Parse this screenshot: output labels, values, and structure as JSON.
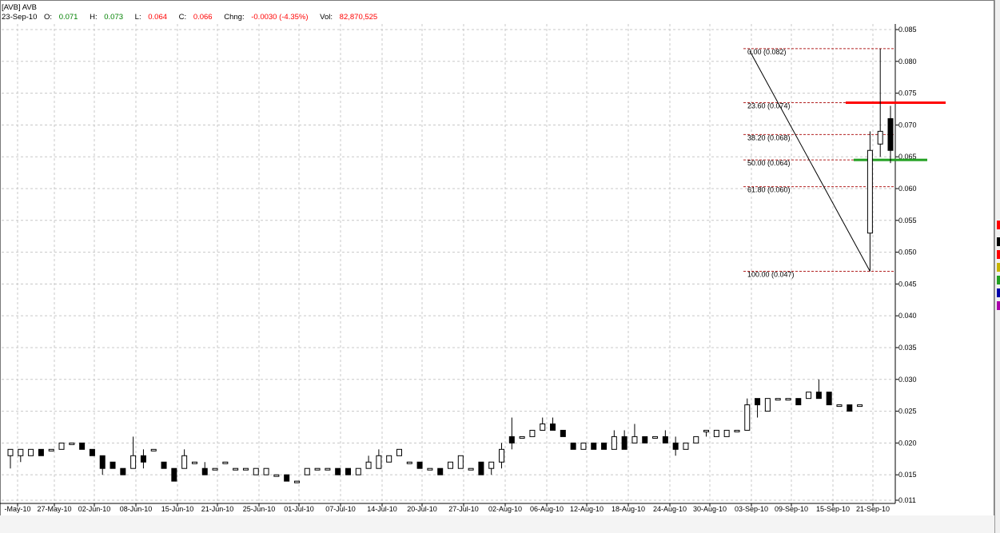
{
  "header": {
    "symbol": "[AVB] AVB",
    "date": "23-Sep-10",
    "open_label": "O:",
    "open_value": "0.071",
    "high_label": "H:",
    "high_value": "0.073",
    "low_label": "L:",
    "low_value": "0.064",
    "close_label": "C:",
    "close_value": "0.066",
    "change_label": "Chng:",
    "change_value": "-0.0030 (-4.35%)",
    "volume_label": "Vol:",
    "volume_value": "82,870,525"
  },
  "colors": {
    "up_text": "#008000",
    "down_text": "#ff0000",
    "resistance_line": "#ff0000",
    "support_line": "#22a022",
    "fib_lines": "#b22222",
    "grid": "#c8c8c8"
  },
  "chart_data": {
    "type": "candlestick",
    "ylim": [
      0.011,
      0.085
    ],
    "y_ticks": [
      "0.085",
      "0.080",
      "0.075",
      "0.070",
      "0.065",
      "0.060",
      "0.055",
      "0.050",
      "0.045",
      "0.040",
      "0.035",
      "0.030",
      "0.025",
      "0.020",
      "0.015",
      "0.011"
    ],
    "x_tick_labels": [
      "-May-10",
      "27-May-10",
      "02-Jun-10",
      "08-Jun-10",
      "15-Jun-10",
      "21-Jun-10",
      "25-Jun-10",
      "01-Jul-10",
      "07-Jul-10",
      "14-Jul-10",
      "20-Jul-10",
      "27-Jul-10",
      "02-Aug-10",
      "06-Aug-10",
      "12-Aug-10",
      "18-Aug-10",
      "24-Aug-10",
      "30-Aug-10",
      "03-Sep-10",
      "09-Sep-10",
      "15-Sep-10",
      "21-Sep-10"
    ],
    "candles": [
      [
        0.018,
        0.019,
        0.016,
        0.019
      ],
      [
        0.018,
        0.019,
        0.017,
        0.019
      ],
      [
        0.018,
        0.019,
        0.018,
        0.019
      ],
      [
        0.019,
        0.019,
        0.018,
        0.018
      ],
      [
        0.019,
        0.019,
        0.019,
        0.019
      ],
      [
        0.019,
        0.02,
        0.019,
        0.02
      ],
      [
        0.02,
        0.02,
        0.02,
        0.02
      ],
      [
        0.02,
        0.02,
        0.019,
        0.019
      ],
      [
        0.019,
        0.019,
        0.018,
        0.018
      ],
      [
        0.018,
        0.018,
        0.015,
        0.016
      ],
      [
        0.017,
        0.017,
        0.016,
        0.016
      ],
      [
        0.016,
        0.016,
        0.015,
        0.015
      ],
      [
        0.016,
        0.021,
        0.016,
        0.018
      ],
      [
        0.018,
        0.019,
        0.016,
        0.017
      ],
      [
        0.019,
        0.019,
        0.019,
        0.019
      ],
      [
        0.017,
        0.017,
        0.016,
        0.016
      ],
      [
        0.016,
        0.016,
        0.014,
        0.014
      ],
      [
        0.016,
        0.019,
        0.016,
        0.018
      ],
      [
        0.017,
        0.017,
        0.017,
        0.017
      ],
      [
        0.016,
        0.017,
        0.015,
        0.015
      ],
      [
        0.016,
        0.016,
        0.016,
        0.016
      ],
      [
        0.017,
        0.017,
        0.017,
        0.017
      ],
      [
        0.016,
        0.016,
        0.016,
        0.016
      ],
      [
        0.016,
        0.016,
        0.016,
        0.016
      ],
      [
        0.015,
        0.016,
        0.015,
        0.016
      ],
      [
        0.015,
        0.016,
        0.015,
        0.016
      ],
      [
        0.015,
        0.015,
        0.015,
        0.015
      ],
      [
        0.015,
        0.015,
        0.014,
        0.014
      ],
      [
        0.014,
        0.014,
        0.014,
        0.014
      ],
      [
        0.015,
        0.016,
        0.015,
        0.016
      ],
      [
        0.016,
        0.016,
        0.016,
        0.016
      ],
      [
        0.016,
        0.016,
        0.016,
        0.016
      ],
      [
        0.016,
        0.016,
        0.015,
        0.015
      ],
      [
        0.016,
        0.016,
        0.015,
        0.015
      ],
      [
        0.015,
        0.016,
        0.015,
        0.016
      ],
      [
        0.016,
        0.018,
        0.016,
        0.017
      ],
      [
        0.016,
        0.019,
        0.016,
        0.018
      ],
      [
        0.017,
        0.018,
        0.017,
        0.018
      ],
      [
        0.018,
        0.019,
        0.018,
        0.019
      ],
      [
        0.017,
        0.017,
        0.017,
        0.017
      ],
      [
        0.017,
        0.017,
        0.016,
        0.016
      ],
      [
        0.016,
        0.016,
        0.016,
        0.016
      ],
      [
        0.016,
        0.016,
        0.015,
        0.015
      ],
      [
        0.016,
        0.017,
        0.016,
        0.017
      ],
      [
        0.016,
        0.018,
        0.016,
        0.018
      ],
      [
        0.016,
        0.016,
        0.016,
        0.016
      ],
      [
        0.017,
        0.017,
        0.015,
        0.015
      ],
      [
        0.016,
        0.017,
        0.015,
        0.017
      ],
      [
        0.017,
        0.02,
        0.016,
        0.019
      ],
      [
        0.021,
        0.024,
        0.019,
        0.02
      ],
      [
        0.021,
        0.021,
        0.021,
        0.021
      ],
      [
        0.021,
        0.022,
        0.021,
        0.022
      ],
      [
        0.022,
        0.024,
        0.022,
        0.023
      ],
      [
        0.023,
        0.024,
        0.022,
        0.022
      ],
      [
        0.022,
        0.022,
        0.021,
        0.021
      ],
      [
        0.02,
        0.02,
        0.019,
        0.019
      ],
      [
        0.019,
        0.02,
        0.019,
        0.02
      ],
      [
        0.02,
        0.02,
        0.019,
        0.019
      ],
      [
        0.02,
        0.02,
        0.019,
        0.019
      ],
      [
        0.019,
        0.022,
        0.019,
        0.021
      ],
      [
        0.021,
        0.022,
        0.019,
        0.019
      ],
      [
        0.02,
        0.023,
        0.02,
        0.021
      ],
      [
        0.021,
        0.021,
        0.02,
        0.02
      ],
      [
        0.021,
        0.021,
        0.021,
        0.021
      ],
      [
        0.021,
        0.022,
        0.02,
        0.02
      ],
      [
        0.02,
        0.021,
        0.018,
        0.019
      ],
      [
        0.019,
        0.02,
        0.019,
        0.02
      ],
      [
        0.02,
        0.021,
        0.02,
        0.021
      ],
      [
        0.022,
        0.022,
        0.021,
        0.022
      ],
      [
        0.021,
        0.022,
        0.021,
        0.022
      ],
      [
        0.021,
        0.022,
        0.021,
        0.022
      ],
      [
        0.022,
        0.022,
        0.022,
        0.022
      ],
      [
        0.022,
        0.027,
        0.022,
        0.026
      ],
      [
        0.027,
        0.027,
        0.024,
        0.026
      ],
      [
        0.025,
        0.027,
        0.025,
        0.027
      ],
      [
        0.027,
        0.027,
        0.027,
        0.027
      ],
      [
        0.027,
        0.027,
        0.027,
        0.027
      ],
      [
        0.027,
        0.027,
        0.026,
        0.026
      ],
      [
        0.027,
        0.028,
        0.027,
        0.028
      ],
      [
        0.028,
        0.03,
        0.027,
        0.027
      ],
      [
        0.028,
        0.028,
        0.026,
        0.026
      ],
      [
        0.026,
        0.026,
        0.026,
        0.026
      ],
      [
        0.026,
        0.026,
        0.025,
        0.025
      ],
      [
        0.026,
        0.026,
        0.026,
        0.026
      ],
      [
        0.053,
        0.069,
        0.047,
        0.066
      ],
      [
        0.067,
        0.082,
        0.065,
        0.069
      ],
      [
        0.071,
        0.073,
        0.064,
        0.066
      ]
    ],
    "fibonacci": {
      "levels": [
        {
          "label": "0.00 (0.082)",
          "value": 0.082
        },
        {
          "label": "23.60 (0.074)",
          "value": 0.0735
        },
        {
          "label": "38.20 (0.068)",
          "value": 0.0685
        },
        {
          "label": "50.00 (0.064)",
          "value": 0.0645
        },
        {
          "label": "61.80 (0.060)",
          "value": 0.0603
        },
        {
          "label": "100.00 (0.047)",
          "value": 0.047
        }
      ],
      "trend_from": {
        "index": 84,
        "value": 0.047
      },
      "trend_to_value": 0.082
    },
    "resistance_value": 0.0735,
    "support_value": 0.0645
  },
  "right_swatches": [
    "#ff0000",
    "#000000",
    "#ff0000",
    "#c8b400",
    "#22a022",
    "#0000aa",
    "#aa00aa"
  ]
}
